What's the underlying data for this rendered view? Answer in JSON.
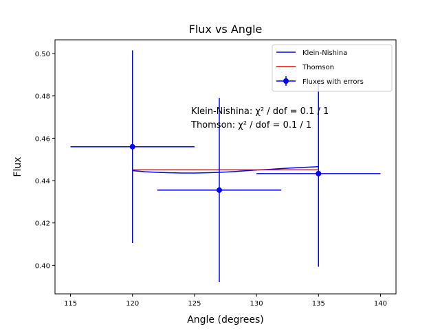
{
  "chart_data": {
    "type": "scatter",
    "title": "Flux vs Angle",
    "xlabel": "Angle (degrees)",
    "ylabel": "Flux",
    "xlim": [
      113.75,
      141.25
    ],
    "ylim": [
      0.3865,
      0.5065
    ],
    "xticks": [
      115,
      120,
      125,
      130,
      135,
      140
    ],
    "yticks": [
      0.4,
      0.42,
      0.44,
      0.46,
      0.48,
      0.5
    ],
    "grid": false,
    "legend_position": "top-right",
    "series": [
      {
        "name": "Klein-Nishina",
        "kind": "line",
        "color": "#0000ff",
        "x": [
          120,
          121,
          122,
          123,
          124,
          125,
          126,
          127,
          128,
          129,
          130,
          131,
          132,
          133,
          134,
          135
        ],
        "y": [
          0.4447,
          0.4442,
          0.4439,
          0.4437,
          0.4436,
          0.4436,
          0.4437,
          0.4439,
          0.4442,
          0.4446,
          0.445,
          0.4453,
          0.4457,
          0.446,
          0.4463,
          0.4466
        ]
      },
      {
        "name": "Thomson",
        "kind": "line",
        "color": "#ff0000",
        "x": [
          120,
          135
        ],
        "y": [
          0.4451,
          0.4451
        ]
      },
      {
        "name": "Fluxes with errors",
        "kind": "errorbar",
        "color": "#0000ff",
        "x": [
          120,
          127,
          135
        ],
        "y": [
          0.456,
          0.4355,
          0.4433
        ],
        "xerr": [
          5,
          5,
          5
        ],
        "yerr": [
          0.0455,
          0.0435,
          0.044
        ]
      }
    ],
    "annotations": [
      "Klein-Nishina: χ² / dof = 0.1 / 1",
      "Thomson: χ² / dof = 0.1 / 1"
    ]
  }
}
